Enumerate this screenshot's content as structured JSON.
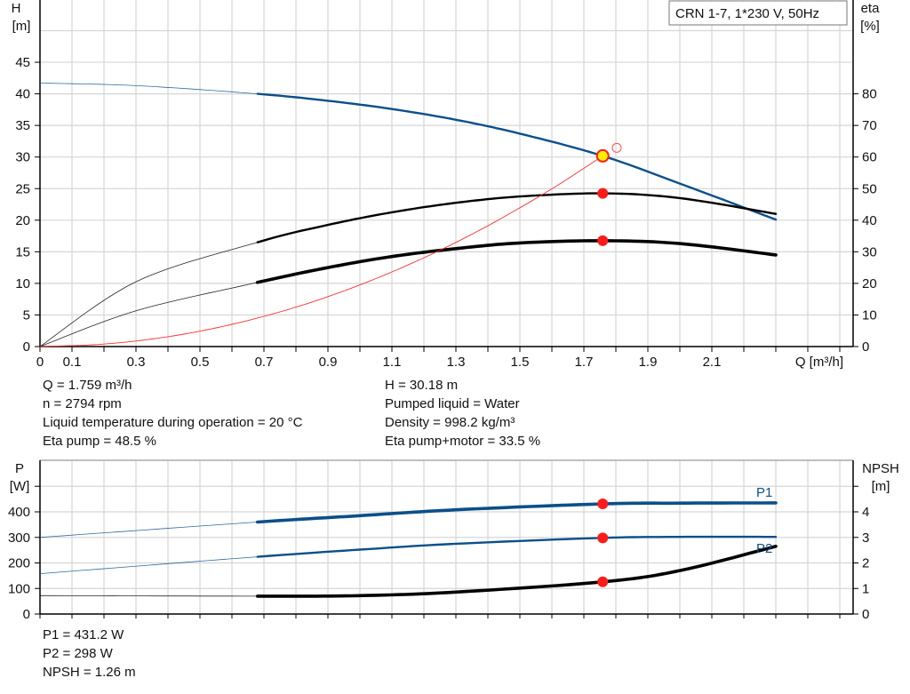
{
  "chart_data": [
    {
      "type": "line",
      "title": "CRN 1-7, 1*230 V, 50Hz",
      "xlabel": "Q [m³/h]",
      "ylabel_left": [
        "H",
        "[m]"
      ],
      "ylabel_right": [
        "eta",
        "[%]"
      ],
      "xlim": [
        0,
        2.5
      ],
      "ylim": [
        0,
        55
      ],
      "ylim_right": [
        0,
        110
      ],
      "x_ticks": [
        "0",
        "0.1",
        "0.3",
        "0.5",
        "0.7",
        "0.9",
        "1.1",
        "1.3",
        "1.5",
        "1.7",
        "1.9",
        "2.1"
      ],
      "y_ticks": [
        "0",
        "5",
        "10",
        "15",
        "20",
        "25",
        "30",
        "35",
        "40",
        "45"
      ],
      "y_ticks_right": [
        "0",
        "10",
        "20",
        "30",
        "40",
        "50",
        "60",
        "70",
        "80"
      ],
      "grid": true,
      "series": [
        {
          "id": "H",
          "axis": "left",
          "color": "#0b4f8a",
          "thick_from": 0.68,
          "x": [
            0,
            0.3,
            0.68,
            0.9,
            1.1,
            1.3,
            1.5,
            1.759,
            2.0,
            2.3
          ],
          "y": [
            41.7,
            41.3,
            40.0,
            38.9,
            37.6,
            35.9,
            33.7,
            30.18,
            25.8,
            20.1
          ]
        },
        {
          "id": "eta_pump",
          "axis": "right",
          "color": "#000000",
          "thick_from": 0.68,
          "x": [
            0,
            0.3,
            0.68,
            0.9,
            1.1,
            1.3,
            1.5,
            1.759,
            2.0,
            2.3
          ],
          "y": [
            0,
            20.5,
            33,
            38.5,
            42.5,
            45.5,
            47.5,
            48.5,
            47,
            42
          ]
        },
        {
          "id": "eta_pump_motor",
          "axis": "right",
          "color": "#000000",
          "thick_from": 0.68,
          "heavy": true,
          "x": [
            0,
            0.3,
            0.68,
            0.9,
            1.1,
            1.3,
            1.5,
            1.759,
            2.0,
            2.3
          ],
          "y": [
            0,
            11.3,
            20.3,
            25,
            28.5,
            31,
            32.8,
            33.5,
            32.6,
            29
          ]
        },
        {
          "id": "system_curve",
          "axis": "left",
          "color": "#ff3030",
          "thin": true,
          "x": [
            0,
            0.2,
            0.4,
            0.6,
            0.8,
            1.0,
            1.2,
            1.4,
            1.6,
            1.759
          ],
          "y": [
            0,
            0.39,
            1.56,
            3.51,
            6.24,
            9.76,
            14.05,
            19.12,
            24.97,
            30.18
          ]
        }
      ],
      "operating_point": {
        "Q": 1.759,
        "H": 30.18,
        "eta_pump": 48.5,
        "eta_pump_motor": 33.5
      },
      "requested_point": {
        "Q": 1.8,
        "H": 31.6
      }
    },
    {
      "type": "line",
      "ylabel_left": [
        "P",
        "[W]"
      ],
      "ylabel_right": [
        "NPSH",
        "[m]"
      ],
      "xlim": [
        0,
        2.5
      ],
      "ylim": [
        0,
        600
      ],
      "ylim_right": [
        0,
        6
      ],
      "y_ticks": [
        "0",
        "100",
        "200",
        "300",
        "400",
        ""
      ],
      "y_ticks_right": [
        "0",
        "1",
        "2",
        "3",
        "4",
        ""
      ],
      "grid": true,
      "series": [
        {
          "id": "P1",
          "name": "P1",
          "axis": "left",
          "color": "#0b4f8a",
          "thick_from": 0.68,
          "heavy": true,
          "x": [
            0,
            0.68,
            1.0,
            1.3,
            1.759,
            2.0,
            2.3
          ],
          "y": [
            300,
            360,
            385,
            408,
            431.2,
            434,
            435
          ]
        },
        {
          "id": "P2",
          "name": "P2",
          "axis": "left",
          "color": "#0b4f8a",
          "thick_from": 0.68,
          "x": [
            0,
            0.68,
            1.0,
            1.3,
            1.759,
            2.0,
            2.3
          ],
          "y": [
            158,
            224,
            252,
            275,
            298,
            302,
            302
          ]
        },
        {
          "id": "NPSH",
          "axis": "right",
          "color": "#000000",
          "thick_from": 0.68,
          "heavy": true,
          "x": [
            0,
            0.68,
            1.0,
            1.3,
            1.759,
            2.0,
            2.3
          ],
          "y": [
            0.72,
            0.7,
            0.72,
            0.86,
            1.26,
            1.7,
            2.65
          ]
        }
      ],
      "operating_point": {
        "Q": 1.759,
        "P1": 431.2,
        "P2": 298,
        "NPSH": 1.26
      }
    }
  ],
  "info_top_left": [
    "Q = 1.759 m³/h",
    "n = 2794 rpm",
    "Liquid temperature during operation = 20 °C",
    "Eta pump = 48.5 %"
  ],
  "info_top_right": [
    "H = 30.18 m",
    "Pumped liquid = Water",
    "Density = 998.2 kg/m³",
    "Eta pump+motor = 33.5 %"
  ],
  "info_bottom": [
    "P1 = 431.2 W",
    "P2 = 298 W",
    "NPSH = 1.26 m"
  ]
}
